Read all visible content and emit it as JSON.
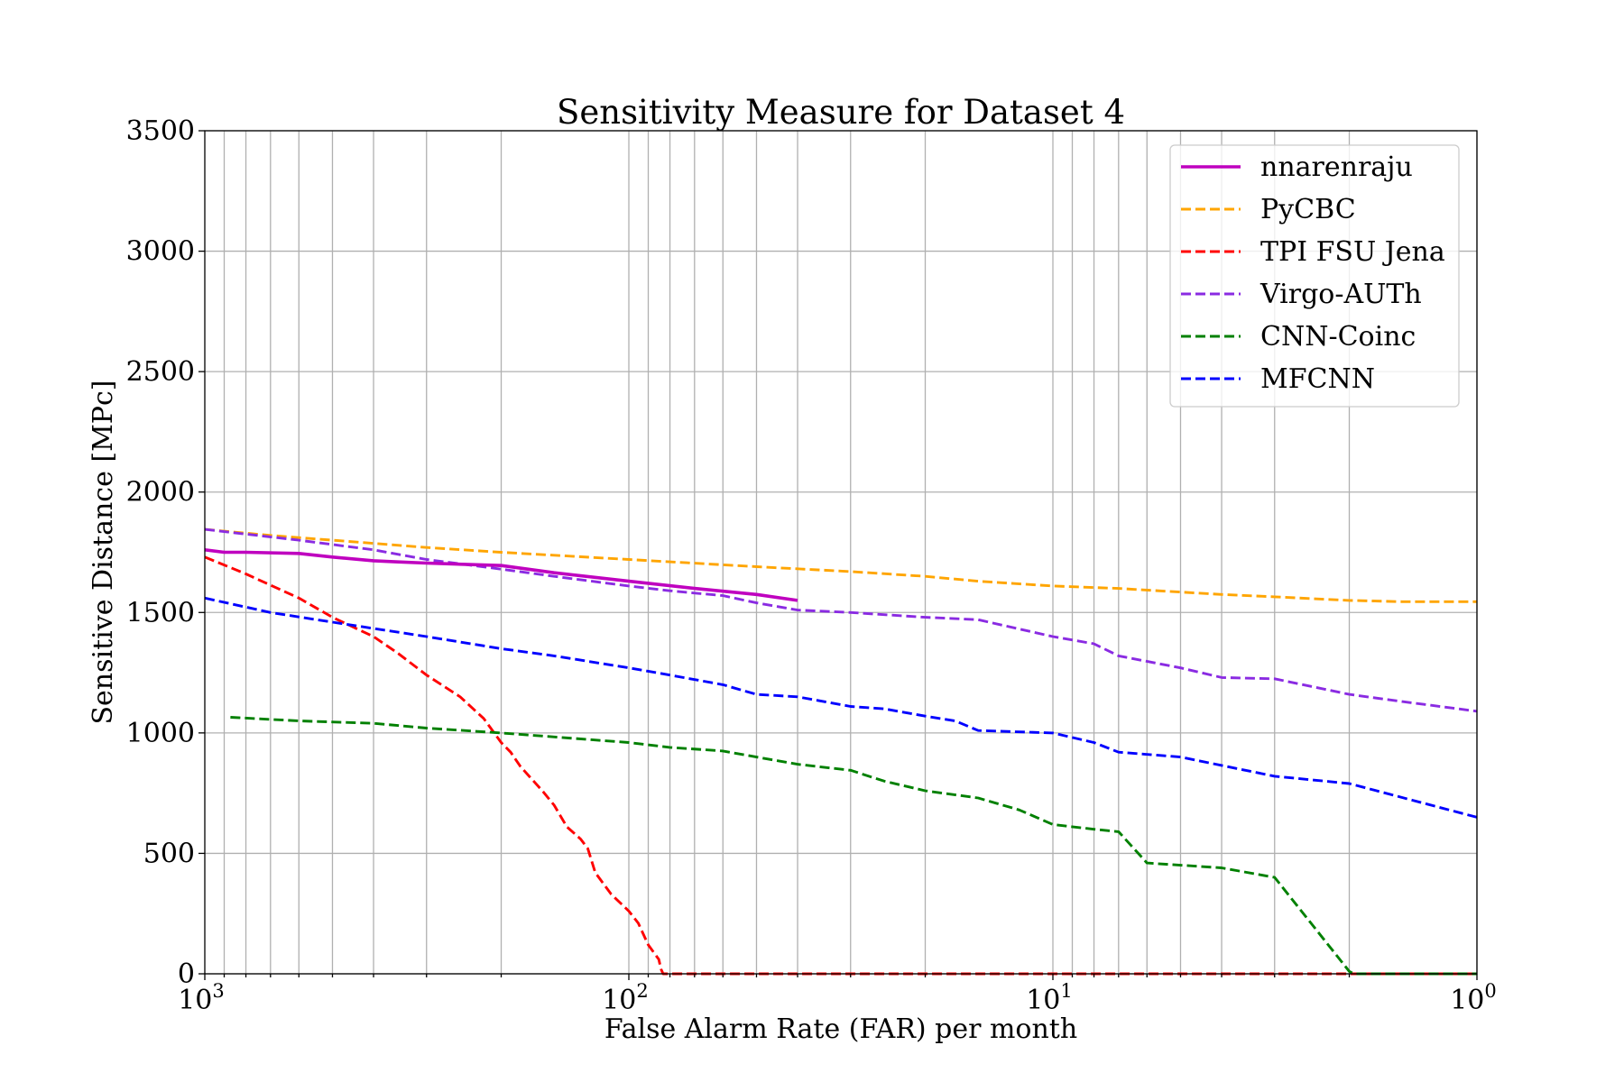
{
  "chart_data": {
    "type": "line",
    "title": "Sensitivity Measure for Dataset 4",
    "xlabel": "False Alarm Rate (FAR) per month",
    "ylabel": "Sensitive Distance [MPc]",
    "xscale": "log",
    "xaxis_inverted": true,
    "xlim": [
      1000,
      1
    ],
    "ylim": [
      0,
      3500
    ],
    "yticks": [
      0,
      500,
      1000,
      1500,
      2000,
      2500,
      3000,
      3500
    ],
    "ytick_labels": [
      "0",
      "500",
      "1000",
      "1500",
      "2000",
      "2500",
      "3000",
      "3500"
    ],
    "xticks": [
      1000,
      100,
      10,
      1
    ],
    "xtick_labels": [
      {
        "base": "10",
        "exp": "3"
      },
      {
        "base": "10",
        "exp": "2"
      },
      {
        "base": "10",
        "exp": "1"
      },
      {
        "base": "10",
        "exp": "0"
      }
    ],
    "grid": true,
    "legend_position": "top-right",
    "series": [
      {
        "name": "nnarenraju",
        "color": "#bf00bf",
        "style": "solid",
        "x": [
          1000,
          900,
          800,
          600,
          500,
          400,
          350,
          300,
          200,
          150,
          100,
          70,
          50,
          40
        ],
        "y": [
          1760,
          1750,
          1750,
          1745,
          1730,
          1715,
          1710,
          1705,
          1695,
          1665,
          1630,
          1600,
          1575,
          1550
        ]
      },
      {
        "name": "PyCBC",
        "color": "#ffa500",
        "style": "dashed",
        "x": [
          1000,
          700,
          500,
          300,
          200,
          100,
          50,
          30,
          20,
          15,
          10,
          7,
          4,
          3,
          2,
          1.5,
          1
        ],
        "y": [
          1845,
          1820,
          1800,
          1770,
          1750,
          1720,
          1690,
          1670,
          1650,
          1630,
          1610,
          1600,
          1575,
          1565,
          1550,
          1545,
          1545
        ]
      },
      {
        "name": "TPI FSU Jena",
        "color": "#ff0000",
        "style": "dashed",
        "x": [
          1000,
          800,
          600,
          500,
          400,
          350,
          300,
          250,
          220,
          200,
          190,
          180,
          160,
          150,
          140,
          130,
          125,
          120,
          110,
          100,
          95,
          90,
          85,
          84,
          83,
          82,
          1
        ],
        "y": [
          1730,
          1660,
          1560,
          1480,
          1400,
          1330,
          1240,
          1150,
          1060,
          960,
          920,
          860,
          760,
          700,
          610,
          560,
          520,
          420,
          330,
          260,
          210,
          120,
          60,
          20,
          0,
          0,
          0
        ]
      },
      {
        "name": "Virgo-AUTh",
        "color": "#8a2be2",
        "style": "dashed",
        "x": [
          1000,
          600,
          400,
          300,
          200,
          150,
          100,
          80,
          60,
          50,
          40,
          30,
          20,
          15,
          10,
          8,
          7,
          5,
          4,
          3,
          2,
          1.5,
          1
        ],
        "y": [
          1845,
          1800,
          1760,
          1720,
          1680,
          1650,
          1610,
          1590,
          1570,
          1540,
          1510,
          1500,
          1480,
          1470,
          1400,
          1370,
          1320,
          1270,
          1230,
          1225,
          1160,
          1130,
          1090
        ]
      },
      {
        "name": "CNN-Coinc",
        "color": "#008000",
        "style": "dashed",
        "x": [
          870,
          600,
          400,
          300,
          200,
          100,
          80,
          60,
          50,
          40,
          30,
          25,
          20,
          15,
          12,
          10,
          8,
          7,
          6,
          4,
          3,
          2,
          1.95,
          1
        ],
        "y": [
          1065,
          1050,
          1040,
          1020,
          1000,
          960,
          940,
          925,
          900,
          870,
          845,
          800,
          760,
          730,
          680,
          620,
          600,
          590,
          460,
          440,
          400,
          10,
          0,
          0
        ]
      },
      {
        "name": "MFCNN",
        "color": "#0000ff",
        "style": "dashed",
        "x": [
          1000,
          700,
          500,
          300,
          200,
          150,
          100,
          80,
          60,
          50,
          40,
          30,
          25,
          20,
          17,
          15,
          10,
          8,
          7,
          5,
          3,
          2,
          1
        ],
        "y": [
          1560,
          1500,
          1460,
          1400,
          1350,
          1320,
          1270,
          1240,
          1200,
          1160,
          1150,
          1110,
          1100,
          1070,
          1050,
          1010,
          1000,
          960,
          920,
          900,
          820,
          790,
          650
        ]
      }
    ]
  }
}
